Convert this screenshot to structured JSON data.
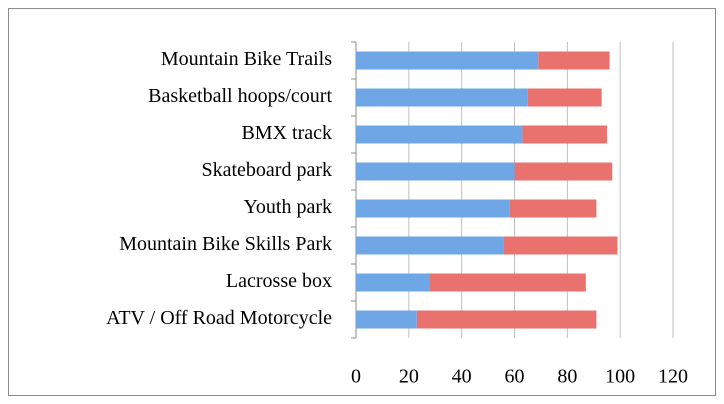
{
  "chart_data": {
    "type": "stacked_barh",
    "categories": [
      "Mountain Bike Trails",
      "Basketball hoops/court",
      "BMX track",
      "Skateboard park",
      "Youth park",
      "Mountain Bike Skills Park",
      "Lacrosse box",
      "ATV / Off Road Motorcycle"
    ],
    "series": [
      {
        "color": "#6fa6e6",
        "values": [
          69,
          65,
          63,
          60,
          58,
          56,
          28,
          23
        ]
      },
      {
        "color": "#e9726f",
        "values": [
          27,
          28,
          32,
          37,
          33,
          43,
          59,
          68
        ]
      }
    ],
    "xlim": [
      0,
      120
    ],
    "xticks": [
      0,
      20,
      40,
      60,
      80,
      100,
      120
    ],
    "grid": true
  }
}
